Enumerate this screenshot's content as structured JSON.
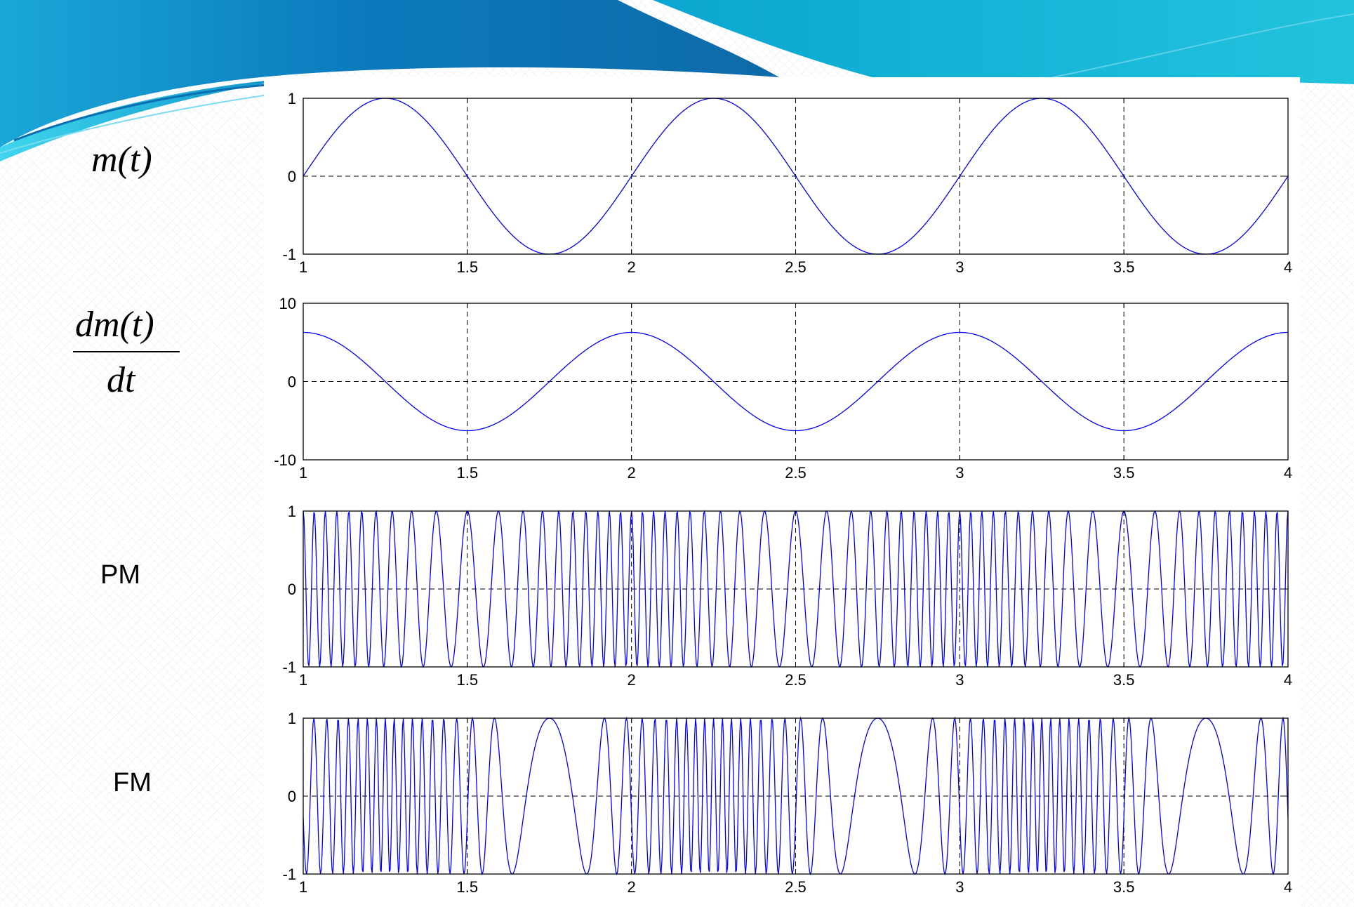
{
  "labels": {
    "m": "m(t)",
    "dm_num": "dm(t)",
    "dm_den": "dt",
    "pm": "PM",
    "fm": "FM"
  },
  "colors": {
    "line": "#0000ff",
    "banner_dark": "#0d6fb0",
    "banner_light": "#14b4d6"
  },
  "chart_data": [
    {
      "type": "line",
      "x_range": [
        1,
        4
      ],
      "ylim": [
        -1,
        1
      ],
      "xticks": [
        "1",
        "1.5",
        "2",
        "2.5",
        "3",
        "3.5",
        "4"
      ],
      "yticks": [
        "-1",
        "0",
        "1"
      ],
      "grid": true,
      "samples": [
        0,
        0.707,
        1,
        0.707,
        0,
        -0.707,
        -1,
        -0.707,
        0,
        0.707,
        1,
        0.707,
        0,
        -0.707,
        -1,
        -0.707,
        0,
        0.707,
        1,
        0.707,
        0,
        -0.707,
        -1,
        -0.707,
        0
      ]
    },
    {
      "type": "line",
      "x_range": [
        1,
        4
      ],
      "ylim": [
        -10,
        10
      ],
      "xticks": [
        "1",
        "1.5",
        "2",
        "2.5",
        "3",
        "3.5",
        "4"
      ],
      "yticks": [
        "-10",
        "0",
        "10"
      ],
      "grid": true,
      "samples": [
        6.28,
        4.44,
        0,
        -4.44,
        -6.28,
        -4.44,
        0,
        4.44,
        6.28,
        4.44,
        0,
        -4.44,
        -6.28,
        -4.44,
        0,
        4.44,
        6.28,
        4.44,
        0,
        -4.44,
        -6.28,
        -4.44,
        0,
        4.44,
        6.28
      ]
    },
    {
      "type": "line",
      "x_range": [
        1,
        4
      ],
      "ylim": [
        -1,
        1
      ],
      "xticks": [
        "1",
        "1.5",
        "2",
        "2.5",
        "3",
        "3.5",
        "4"
      ],
      "yticks": [
        "-1",
        "0",
        "1"
      ],
      "grid": true,
      "carrier_hz": 20,
      "message_hz": 1,
      "modulation": "phase",
      "mod_index": 10
    },
    {
      "type": "line",
      "x_range": [
        1,
        4
      ],
      "ylim": [
        -1,
        1
      ],
      "xticks": [
        "1",
        "1.5",
        "2",
        "2.5",
        "3",
        "3.5",
        "4"
      ],
      "yticks": [
        "-1",
        "0",
        "1"
      ],
      "grid": true,
      "carrier_hz": 20,
      "message_hz": 1,
      "modulation": "frequency",
      "freq_deviation_hz": 17
    }
  ]
}
